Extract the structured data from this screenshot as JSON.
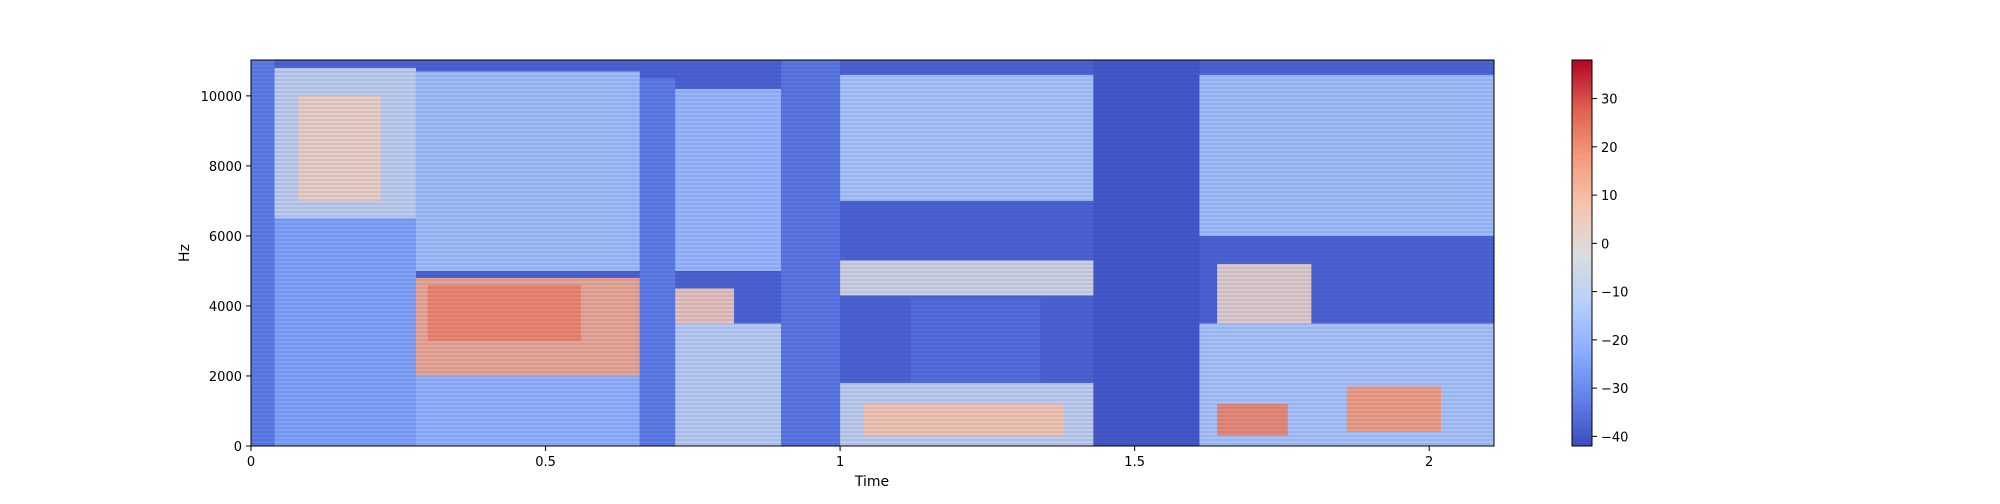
{
  "chart_data": {
    "type": "heatmap",
    "title": "",
    "xlabel": "Time",
    "ylabel": "Hz",
    "xlim": [
      0,
      2.11
    ],
    "ylim": [
      0,
      11025
    ],
    "x_ticks": [
      {
        "value": 0,
        "label": "0"
      },
      {
        "value": 0.5,
        "label": "0.5"
      },
      {
        "value": 1,
        "label": "1"
      },
      {
        "value": 1.5,
        "label": "1.5"
      },
      {
        "value": 2,
        "label": "2"
      }
    ],
    "y_ticks": [
      {
        "value": 0,
        "label": "0"
      },
      {
        "value": 2000,
        "label": "2000"
      },
      {
        "value": 4000,
        "label": "4000"
      },
      {
        "value": 6000,
        "label": "6000"
      },
      {
        "value": 8000,
        "label": "8000"
      },
      {
        "value": 10000,
        "label": "10000"
      }
    ],
    "colorbar": {
      "colormap": "coolwarm",
      "range": [
        -42,
        38
      ],
      "ticks": [
        {
          "value": 30,
          "label": "30"
        },
        {
          "value": 20,
          "label": "20"
        },
        {
          "value": 10,
          "label": "10"
        },
        {
          "value": 0,
          "label": "0"
        },
        {
          "value": -10,
          "label": "−10"
        },
        {
          "value": -20,
          "label": "−20"
        },
        {
          "value": -30,
          "label": "−30"
        },
        {
          "value": -40,
          "label": "−40"
        }
      ]
    },
    "grid": false,
    "regions": [
      {
        "t": [
          0.0,
          0.04
        ],
        "hz": [
          0,
          11025
        ],
        "db": -33
      },
      {
        "t": [
          0.04,
          0.28
        ],
        "hz": [
          6500,
          10800
        ],
        "db": -8
      },
      {
        "t": [
          0.08,
          0.22
        ],
        "hz": [
          7000,
          10000
        ],
        "db": 4
      },
      {
        "t": [
          0.04,
          0.28
        ],
        "hz": [
          0,
          6500
        ],
        "db": -24
      },
      {
        "t": [
          0.28,
          0.66
        ],
        "hz": [
          5000,
          10700
        ],
        "db": -16
      },
      {
        "t": [
          0.28,
          0.66
        ],
        "hz": [
          2000,
          4800
        ],
        "db": 14
      },
      {
        "t": [
          0.28,
          0.66
        ],
        "hz": [
          0,
          2000
        ],
        "db": -20
      },
      {
        "t": [
          0.3,
          0.56
        ],
        "hz": [
          3000,
          4600
        ],
        "db": 22
      },
      {
        "t": [
          0.66,
          0.72
        ],
        "hz": [
          0,
          10500
        ],
        "db": -33
      },
      {
        "t": [
          0.72,
          0.9
        ],
        "hz": [
          5000,
          10200
        ],
        "db": -18
      },
      {
        "t": [
          0.72,
          0.82
        ],
        "hz": [
          3500,
          4500
        ],
        "db": 6
      },
      {
        "t": [
          0.72,
          0.9
        ],
        "hz": [
          0,
          3500
        ],
        "db": -10
      },
      {
        "t": [
          0.9,
          1.0
        ],
        "hz": [
          0,
          11025
        ],
        "db": -34
      },
      {
        "t": [
          1.0,
          1.43
        ],
        "hz": [
          7000,
          10600
        ],
        "db": -14
      },
      {
        "t": [
          1.0,
          1.43
        ],
        "hz": [
          4300,
          5300
        ],
        "db": -4
      },
      {
        "t": [
          1.12,
          1.34
        ],
        "hz": [
          1800,
          4200
        ],
        "db": -36
      },
      {
        "t": [
          1.0,
          1.43
        ],
        "hz": [
          0,
          1800
        ],
        "db": -8
      },
      {
        "t": [
          1.04,
          1.38
        ],
        "hz": [
          300,
          1200
        ],
        "db": 8
      },
      {
        "t": [
          1.43,
          1.61
        ],
        "hz": [
          0,
          11025
        ],
        "db": -40
      },
      {
        "t": [
          1.61,
          2.11
        ],
        "hz": [
          6000,
          10600
        ],
        "db": -16
      },
      {
        "t": [
          1.64,
          1.8
        ],
        "hz": [
          3500,
          5200
        ],
        "db": 2
      },
      {
        "t": [
          1.61,
          2.11
        ],
        "hz": [
          0,
          3500
        ],
        "db": -14
      },
      {
        "t": [
          1.64,
          1.76
        ],
        "hz": [
          300,
          1200
        ],
        "db": 22
      },
      {
        "t": [
          1.86,
          2.02
        ],
        "hz": [
          400,
          1700
        ],
        "db": 18
      }
    ]
  }
}
